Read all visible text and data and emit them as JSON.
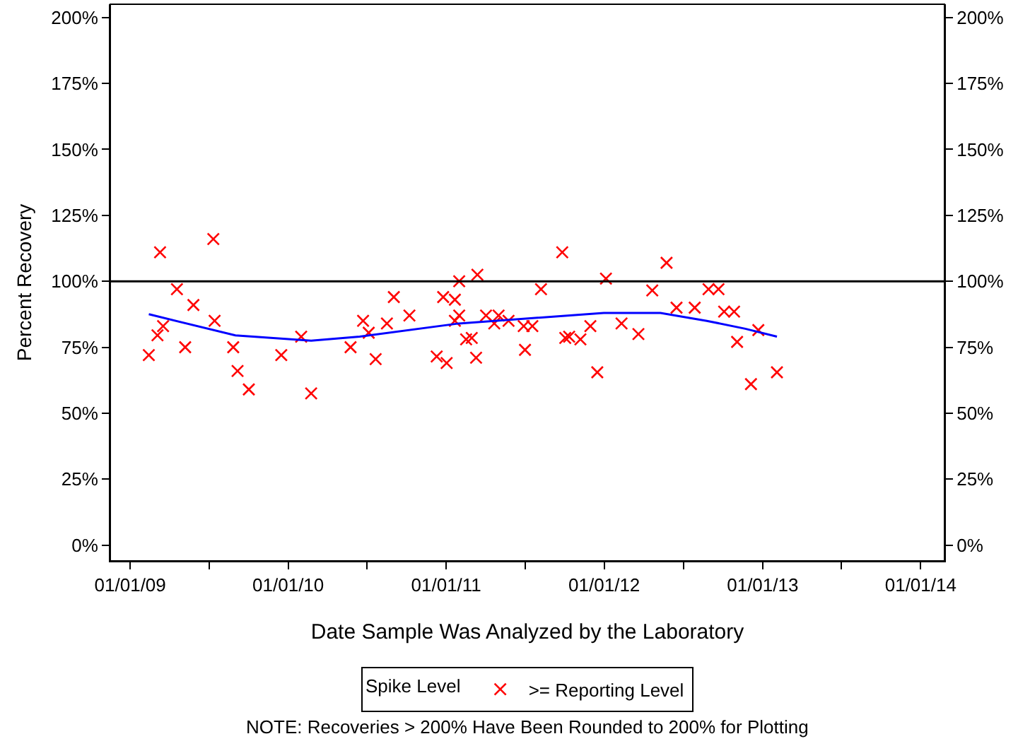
{
  "chart_data": {
    "type": "scatter",
    "xlabel": "Date Sample Was Analyzed by the Laboratory",
    "ylabel": "Percent Recovery",
    "legend_title": "Spike Level",
    "legend": "bottom",
    "grid": false,
    "xlim": [
      "2008-11-16",
      "2014-02-25"
    ],
    "xticks": [
      {
        "value": "2009-01-01",
        "label": "01/01/09"
      },
      {
        "value": "2009-07-02",
        "label": null
      },
      {
        "value": "2010-01-01",
        "label": "01/01/10"
      },
      {
        "value": "2010-07-02",
        "label": null
      },
      {
        "value": "2011-01-01",
        "label": "01/01/11"
      },
      {
        "value": "2011-07-02",
        "label": null
      },
      {
        "value": "2012-01-01",
        "label": "01/01/12"
      },
      {
        "value": "2012-07-02",
        "label": null
      },
      {
        "value": "2013-01-01",
        "label": "01/01/13"
      },
      {
        "value": "2013-07-02",
        "label": null
      },
      {
        "value": "2014-01-01",
        "label": "01/01/14"
      }
    ],
    "ylim": [
      -6,
      205
    ],
    "yticks": [
      {
        "value": 0,
        "label": "0%"
      },
      {
        "value": 25,
        "label": "25%"
      },
      {
        "value": 50,
        "label": "50%"
      },
      {
        "value": 75,
        "label": "75%"
      },
      {
        "value": 100,
        "label": "100%"
      },
      {
        "value": 125,
        "label": "125%"
      },
      {
        "value": 150,
        "label": "150%"
      },
      {
        "value": 175,
        "label": "175%"
      },
      {
        "value": 200,
        "label": "200%"
      }
    ],
    "y2lim": [
      -6,
      205
    ],
    "y2ticks": [
      {
        "value": 0,
        "label": "0%"
      },
      {
        "value": 25,
        "label": "25%"
      },
      {
        "value": 50,
        "label": "50%"
      },
      {
        "value": 75,
        "label": "75%"
      },
      {
        "value": 100,
        "label": "100%"
      },
      {
        "value": 125,
        "label": "125%"
      },
      {
        "value": 150,
        "label": "150%"
      },
      {
        "value": 175,
        "label": "175%"
      },
      {
        "value": 200,
        "label": "200%"
      }
    ],
    "ref_lines": [
      {
        "axis": "y",
        "value": 100,
        "color": "#000000"
      }
    ],
    "annotations": [
      "NOTE: Recoveries > 200% Have Been Rounded to 200% for Plotting"
    ],
    "series": [
      {
        "name": ">= Reporting Level",
        "marker": "cross",
        "color": "#ff0000",
        "x": [
          "2009-02-13",
          "2009-03-05",
          "2009-03-11",
          "2009-03-18",
          "2009-04-19",
          "2009-05-08",
          "2009-05-27",
          "2009-07-12",
          "2009-07-15",
          "2009-08-27",
          "2009-09-06",
          "2009-10-02",
          "2009-12-16",
          "2010-01-31",
          "2010-02-23",
          "2010-05-25",
          "2010-06-23",
          "2010-07-06",
          "2010-07-22",
          "2010-08-17",
          "2010-09-02",
          "2010-10-08",
          "2010-12-10",
          "2010-12-25",
          "2011-01-02",
          "2011-01-21",
          "2011-01-21",
          "2011-01-31",
          "2011-01-31",
          "2011-02-16",
          "2011-03-01",
          "2011-03-11",
          "2011-03-14",
          "2011-04-03",
          "2011-04-22",
          "2011-05-02",
          "2011-05-25",
          "2011-06-29",
          "2011-07-02",
          "2011-07-19",
          "2011-08-08",
          "2011-09-26",
          "2011-10-03",
          "2011-10-12",
          "2011-11-07",
          "2011-11-30",
          "2011-12-16",
          "2012-01-05",
          "2012-02-10",
          "2012-03-20",
          "2012-04-21",
          "2012-05-24",
          "2012-06-16",
          "2012-07-28",
          "2012-08-29",
          "2012-09-21",
          "2012-10-04",
          "2012-10-27",
          "2012-11-03",
          "2012-12-05",
          "2012-12-22",
          "2013-02-03"
        ],
        "values": [
          72,
          79.5,
          111,
          83,
          97,
          75,
          91,
          116,
          85,
          75,
          66,
          59,
          72,
          79,
          57.5,
          75,
          85,
          80.5,
          70.5,
          84,
          94,
          87,
          71.5,
          94,
          69,
          93,
          85,
          100,
          87,
          78,
          78.5,
          71,
          102.5,
          87,
          84,
          87,
          85,
          83,
          74,
          83,
          97,
          111,
          78.5,
          79,
          78,
          83,
          65.5,
          101,
          84,
          80,
          96.5,
          107,
          90,
          90,
          97,
          97,
          88.5,
          88.5,
          77,
          61,
          81.5,
          65.5
        ]
      },
      {
        "type": "line",
        "marker": "none",
        "color": "#0000ff",
        "x": [
          "2009-02-13",
          "2009-09-01",
          "2010-02-23",
          "2010-06-15",
          "2011-01-30",
          "2011-12-31",
          "2012-05-10",
          "2012-08-25",
          "2012-11-22",
          "2013-02-03"
        ],
        "values": [
          87.5,
          79.5,
          77.5,
          79,
          84,
          88,
          88,
          85,
          82,
          79
        ]
      }
    ]
  }
}
